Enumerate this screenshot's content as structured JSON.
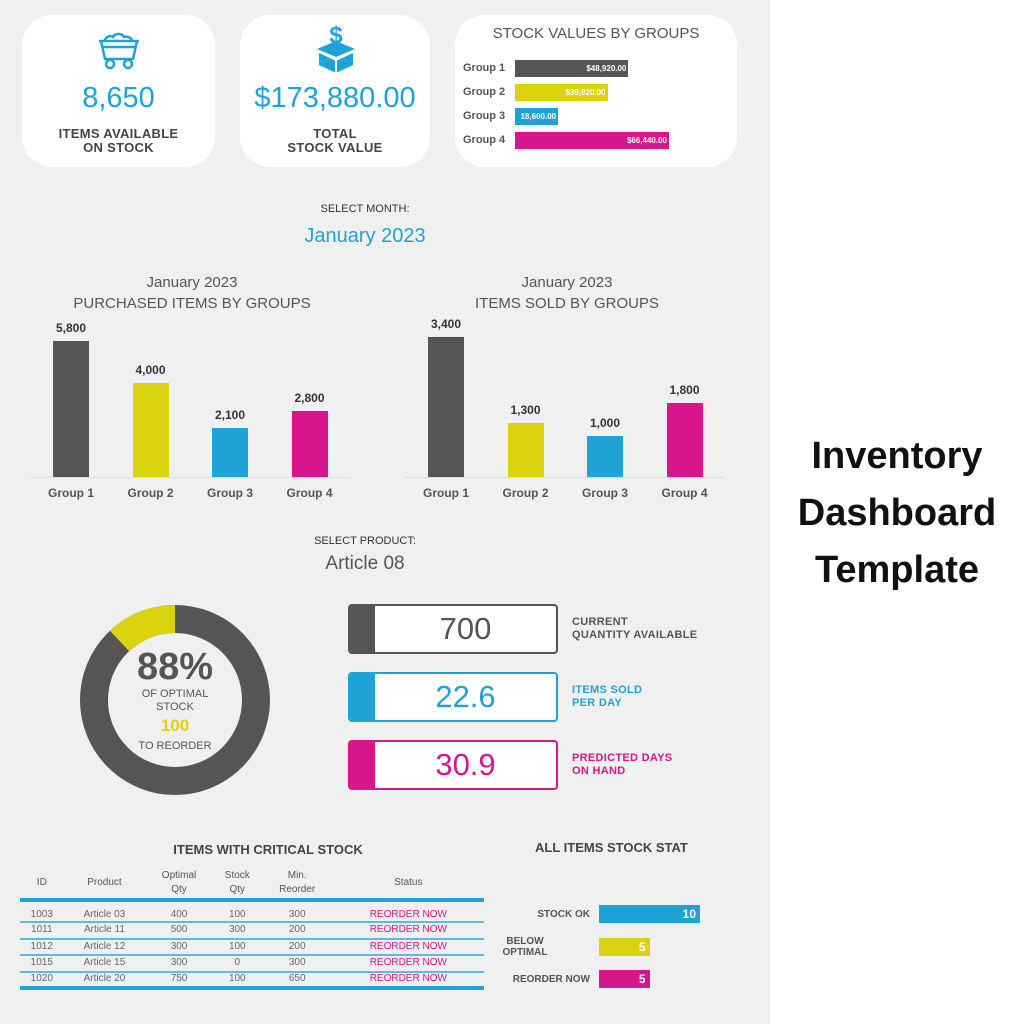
{
  "colors": {
    "group1": "#555555",
    "group2": "#dcd310",
    "group3": "#1fa3d6",
    "group4": "#d6168a",
    "accent": "#1fa3d6"
  },
  "kpis": [
    {
      "icon": "mine-cart-icon",
      "value": "8,650",
      "label_line1": "ITEMS AVAILABLE",
      "label_line2": "ON STOCK"
    },
    {
      "icon": "money-box-icon",
      "value": "$173,880.00",
      "label_line1": "TOTAL",
      "label_line2": "STOCK VALUE"
    }
  ],
  "chart_data": [
    {
      "type": "bar",
      "orientation": "horizontal",
      "title": "STOCK VALUES BY GROUPS",
      "categories": [
        "Group 1",
        "Group 2",
        "Group 3",
        "Group 4"
      ],
      "values": [
        48920,
        39920,
        18600,
        66440
      ],
      "data_labels": [
        "$48,920.00",
        "$39,920.00",
        "18,600.00",
        "$66,440.00"
      ]
    },
    {
      "type": "bar",
      "title_line1": "January 2023",
      "title": "PURCHASED ITEMS BY GROUPS",
      "categories": [
        "Group 1",
        "Group 2",
        "Group 3",
        "Group 4"
      ],
      "values": [
        5800,
        4000,
        2100,
        2800
      ],
      "data_labels": [
        "5,800",
        "4,000",
        "2,100",
        "2,800"
      ]
    },
    {
      "type": "bar",
      "title_line1": "January 2023",
      "title": "ITEMS SOLD BY GROUPS",
      "categories": [
        "Group 1",
        "Group 2",
        "Group 3",
        "Group 4"
      ],
      "values": [
        3400,
        1300,
        1000,
        1800
      ],
      "data_labels": [
        "3,400",
        "1,300",
        "1,000",
        "1,800"
      ]
    },
    {
      "type": "pie",
      "subtype": "donut",
      "values": [
        88,
        12
      ],
      "center_value": "88%",
      "center_line1": "OF OPTIMAL",
      "center_line2": "STOCK",
      "center_value2": "100",
      "center_line3": "TO REORDER"
    },
    {
      "type": "bar",
      "orientation": "horizontal",
      "title": "ALL ITEMS STOCK STAT",
      "categories": [
        "STOCK OK",
        "BELOW OPTIMAL",
        "REORDER NOW"
      ],
      "category_lines": [
        [
          "STOCK OK"
        ],
        [
          "BELOW",
          "OPTIMAL"
        ],
        [
          "REORDER NOW"
        ]
      ],
      "values": [
        10,
        5,
        5
      ]
    }
  ],
  "month_select": {
    "label": "SELECT MONTH:",
    "value": "January 2023"
  },
  "product_select": {
    "label": "SELECT PRODUCT:",
    "value": "Article 08"
  },
  "product_kpis": [
    {
      "value": "700",
      "line1": "CURRENT",
      "line2": "QUANTITY AVAILABLE",
      "color": "#555555"
    },
    {
      "value": "22.6",
      "line1": "ITEMS SOLD",
      "line2": "PER DAY",
      "color": "#1fa3d6"
    },
    {
      "value": "30.9",
      "line1": "PREDICTED DAYS",
      "line2": "ON HAND",
      "color": "#d6168a"
    }
  ],
  "critical_table": {
    "title": "ITEMS WITH CRITICAL STOCK",
    "headers": [
      [
        "ID"
      ],
      [
        "Product"
      ],
      [
        "Optimal",
        "Qty"
      ],
      [
        "Stock",
        "Qty"
      ],
      [
        "Min.",
        "Reorder"
      ],
      [
        "Status"
      ]
    ],
    "rows": [
      [
        "1003",
        "Article 03",
        "400",
        "100",
        "300",
        "REORDER NOW"
      ],
      [
        "1011",
        "Article 11",
        "500",
        "300",
        "200",
        "REORDER NOW"
      ],
      [
        "1012",
        "Article 12",
        "300",
        "100",
        "200",
        "REORDER NOW"
      ],
      [
        "1015",
        "Article 15",
        "300",
        "0",
        "300",
        "REORDER NOW"
      ],
      [
        "1020",
        "Article 20",
        "750",
        "100",
        "650",
        "REORDER NOW"
      ]
    ]
  },
  "page_title": [
    "Inventory",
    "Dashboard",
    "Template"
  ]
}
